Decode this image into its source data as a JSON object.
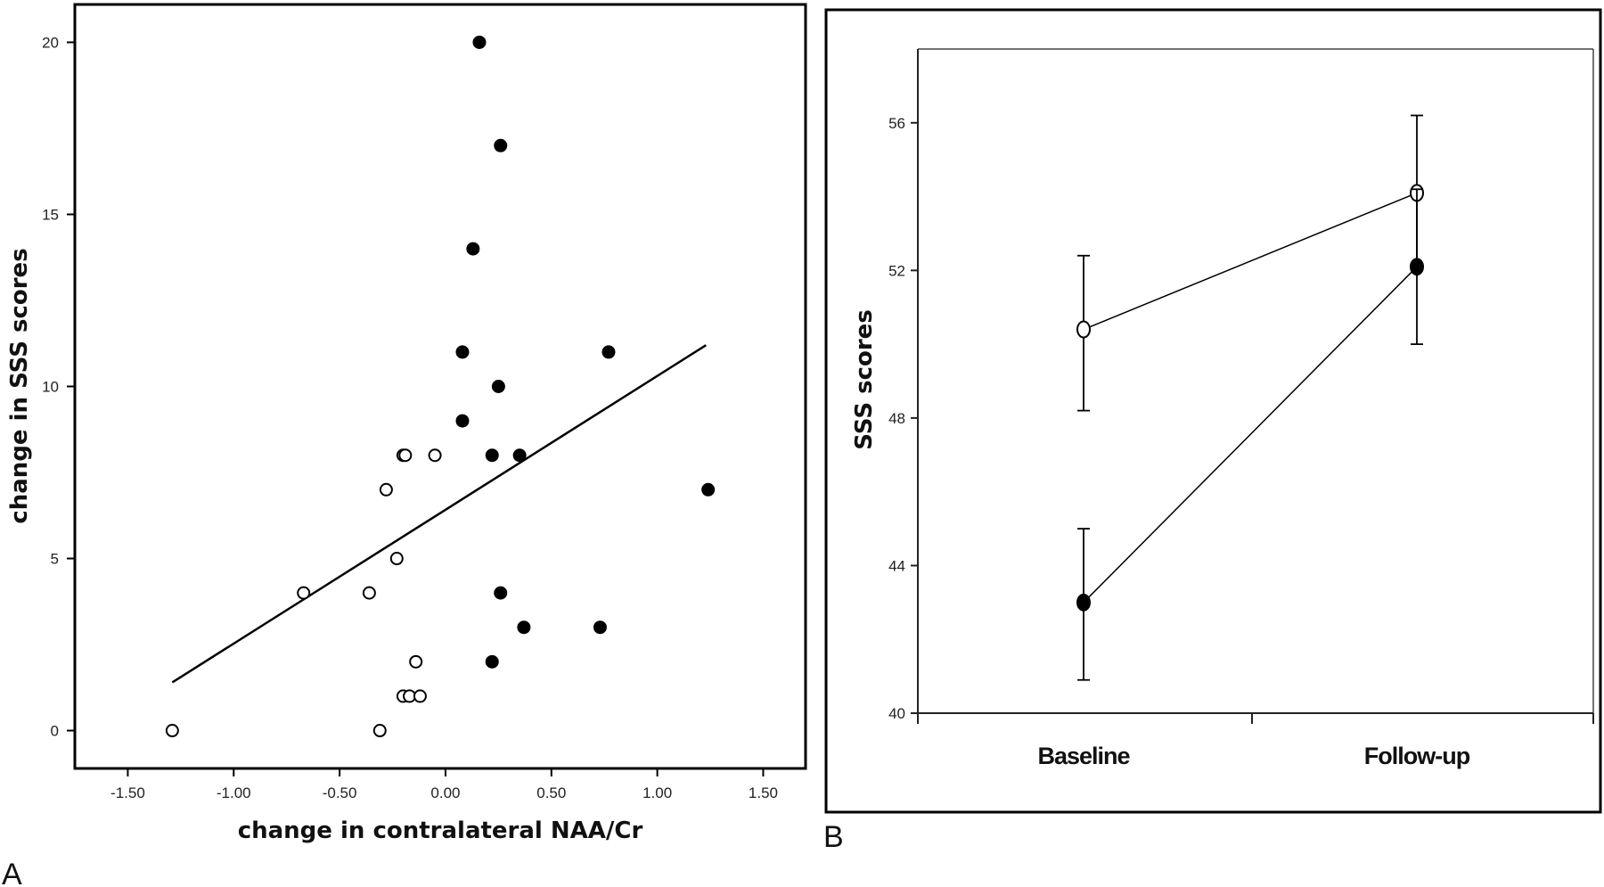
{
  "panels": {
    "a_label": "A",
    "b_label": "B"
  },
  "chart_data": [
    {
      "type": "scatter",
      "panel": "A",
      "xlabel": "change in contralateral NAA/Cr",
      "ylabel": "change in SSS scores",
      "xlim": [
        -1.75,
        1.7
      ],
      "ylim": [
        -1.1,
        21.1
      ],
      "xticks": [
        -1.5,
        -1.0,
        -0.5,
        0.0,
        0.5,
        1.0,
        1.5
      ],
      "xtick_labels": [
        "-1.50",
        "-1.00",
        "-0.50",
        "0.00",
        "0.50",
        "1.00",
        "1.50"
      ],
      "yticks": [
        0,
        5,
        10,
        15,
        20
      ],
      "ytick_labels": [
        "0",
        "5",
        "10",
        "15",
        "20"
      ],
      "grid": false,
      "series": [
        {
          "marker": "filled",
          "points": [
            [
              0.16,
              20
            ],
            [
              0.26,
              17
            ],
            [
              0.13,
              14
            ],
            [
              0.08,
              11
            ],
            [
              0.77,
              11
            ],
            [
              0.25,
              10
            ],
            [
              0.08,
              9
            ],
            [
              0.22,
              8
            ],
            [
              0.35,
              8
            ],
            [
              1.24,
              7
            ],
            [
              0.26,
              4
            ],
            [
              0.37,
              3
            ],
            [
              0.73,
              3
            ],
            [
              0.22,
              2
            ]
          ]
        },
        {
          "marker": "open",
          "points": [
            [
              -0.2,
              8
            ],
            [
              -0.19,
              8
            ],
            [
              -0.05,
              8
            ],
            [
              -0.28,
              7
            ],
            [
              -0.23,
              5
            ],
            [
              -0.67,
              4
            ],
            [
              -0.36,
              4
            ],
            [
              -0.14,
              2
            ],
            [
              -0.2,
              1
            ],
            [
              -0.17,
              1
            ],
            [
              -0.12,
              1
            ],
            [
              -1.29,
              0
            ],
            [
              -0.31,
              0
            ]
          ]
        }
      ],
      "fit_line": {
        "x": [
          -1.29,
          1.23
        ],
        "y": [
          1.4,
          11.2
        ]
      }
    },
    {
      "type": "line",
      "panel": "B",
      "xlabel": "",
      "ylabel": "SSS scores",
      "categories": [
        "Baseline",
        "Follow-up"
      ],
      "ylim": [
        40,
        58
      ],
      "yticks": [
        40,
        44,
        48,
        52,
        56
      ],
      "ytick_labels": [
        "40",
        "44",
        "48",
        "52",
        "56"
      ],
      "grid": false,
      "series": [
        {
          "marker": "open",
          "values": [
            50.4,
            54.1
          ],
          "error_low": [
            48.2,
            52.0
          ],
          "error_high": [
            52.4,
            56.2
          ]
        },
        {
          "marker": "filled",
          "values": [
            43.0,
            52.1
          ],
          "error_low": [
            40.9,
            50.0
          ],
          "error_high": [
            45.0,
            54.2
          ]
        }
      ]
    }
  ]
}
